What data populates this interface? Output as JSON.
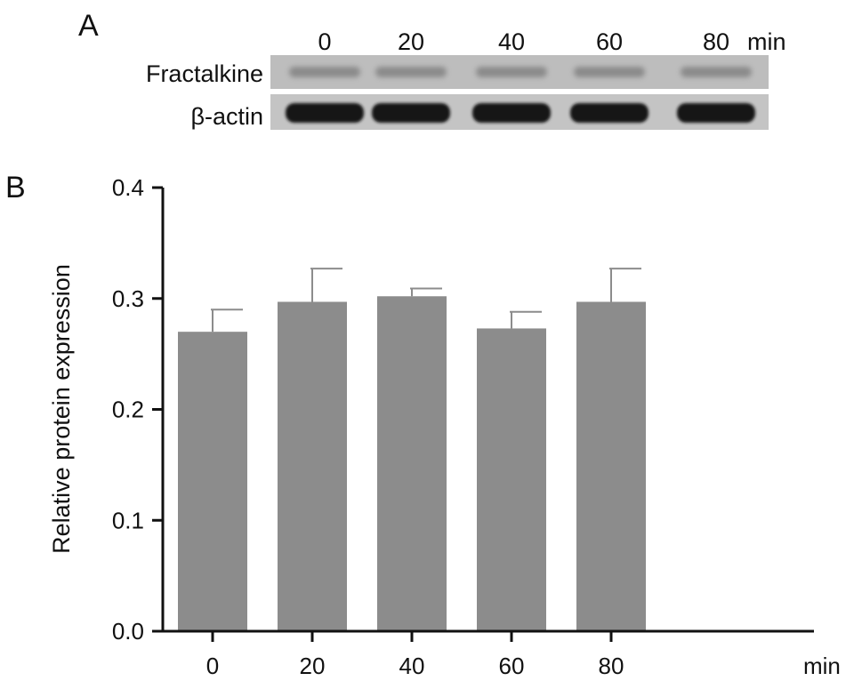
{
  "panels": {
    "a": {
      "label": "A"
    },
    "b": {
      "label": "B"
    }
  },
  "blot": {
    "lanes": [
      "0",
      "20",
      "40",
      "60",
      "80"
    ],
    "unit": "min",
    "rows": [
      {
        "label": "Fractalkine",
        "band": "faint"
      },
      {
        "label": "β-actin",
        "band": "strong"
      }
    ],
    "colors": {
      "membrane": "#bdbdbd",
      "band_faint": "#7a7a7a",
      "band_strong": "#151515"
    }
  },
  "chart_data": {
    "type": "bar",
    "categories": [
      "0",
      "20",
      "40",
      "60",
      "80"
    ],
    "values": [
      0.27,
      0.297,
      0.302,
      0.273,
      0.297
    ],
    "errors": [
      0.02,
      0.03,
      0.007,
      0.015,
      0.03
    ],
    "xlabel": "min",
    "ylabel": "Relative protein expression",
    "ylim": [
      0,
      0.4
    ],
    "yticks": [
      "0.0",
      "0.1",
      "0.2",
      "0.3",
      "0.4"
    ],
    "grid": false,
    "bar_color": "#8c8c8c"
  }
}
